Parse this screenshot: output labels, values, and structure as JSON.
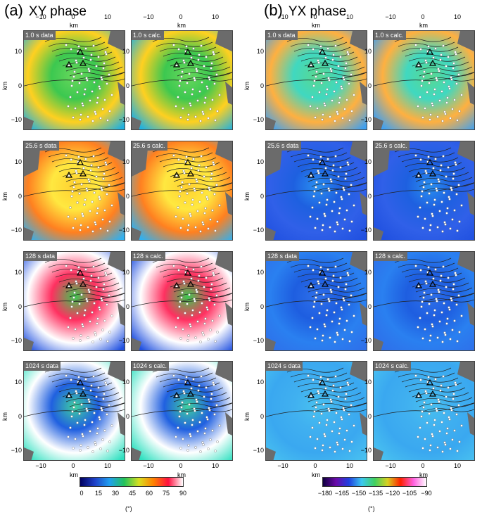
{
  "panel_a": {
    "letter": "(a)",
    "title": "XY phase"
  },
  "panel_b": {
    "letter": "(b)",
    "title": "YX phase"
  },
  "rows": [
    {
      "data_label": "1.0 s data",
      "calc_label": "1.0 s calc."
    },
    {
      "data_label": "25.6 s data",
      "calc_label": "25.6 s calc."
    },
    {
      "data_label": "128 s data",
      "calc_label": "128 s calc."
    },
    {
      "data_label": "1024 s data",
      "calc_label": "1024 s calc."
    }
  ],
  "axis": {
    "x_ticks": [
      "−10",
      "0",
      "10"
    ],
    "y_ticks": [
      "10",
      "0",
      "−10"
    ],
    "unit": "km"
  },
  "colorbar_a": {
    "ticks": [
      "0",
      "15",
      "30",
      "45",
      "60",
      "75",
      "90"
    ],
    "unit": "(°)"
  },
  "colorbar_b": {
    "ticks": [
      "−180",
      "−165",
      "−150",
      "−135",
      "−120",
      "−105",
      "−90"
    ],
    "unit": "(°)"
  },
  "colors": {
    "xy_low": "#1e40c8",
    "xy_mid": "#22c25a",
    "xy_high": "#ffffff",
    "yx_low": "#6a0aa8",
    "yx_mid": "#3cc8f0",
    "yx_high": "#ffffff",
    "nodata": "#6b6b6b"
  }
}
